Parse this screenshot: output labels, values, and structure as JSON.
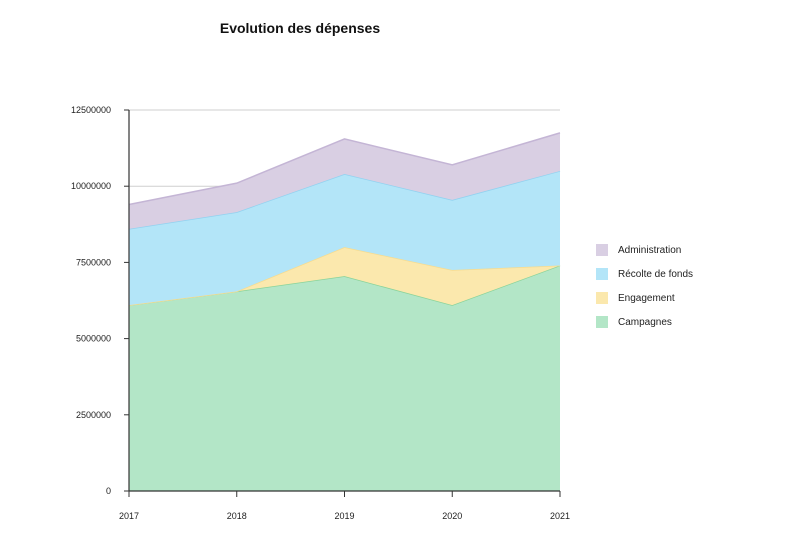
{
  "chart_data": {
    "type": "area",
    "stacked": true,
    "title": "Evolution des dépenses",
    "xlabel": "",
    "ylabel": "",
    "x": [
      "2017",
      "2018",
      "2019",
      "2020",
      "2021"
    ],
    "ylim": [
      0,
      12500000
    ],
    "yticks": [
      "0",
      "2500000",
      "5000000",
      "7500000",
      "10000000",
      "12500000"
    ],
    "grid": true,
    "legend_position": "right",
    "series": [
      {
        "name": "Campagnes",
        "values": [
          6100000,
          6550000,
          7050000,
          6100000,
          7400000
        ],
        "color": "#b3e6c7",
        "line": "#8ad39a"
      },
      {
        "name": "Engagement",
        "values": [
          0,
          0,
          950000,
          1150000,
          0
        ],
        "color": "#fbe8ad",
        "line": "#f7dc8f"
      },
      {
        "name": "Récolte de fonds",
        "values": [
          2500000,
          2600000,
          2400000,
          2300000,
          3100000
        ],
        "color": "#b3e5f8",
        "line": "#92d2f0"
      },
      {
        "name": "Administration",
        "values": [
          800000,
          950000,
          1150000,
          1150000,
          1250000
        ],
        "color": "#d9cfe3",
        "line": "#c4b5d5"
      }
    ],
    "legend_order": [
      "Administration",
      "Récolte de fonds",
      "Engagement",
      "Campagnes"
    ]
  }
}
